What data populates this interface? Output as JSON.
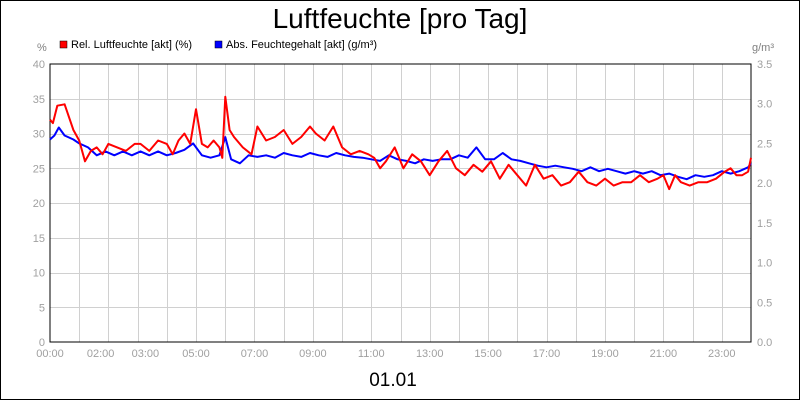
{
  "chart_data": {
    "type": "line",
    "title": "Luftfeuchte [pro Tag]",
    "date_label": "01.01",
    "y_left": {
      "unit": "%",
      "min": 0,
      "max": 40,
      "ticks": [
        "0",
        "5",
        "10",
        "15",
        "20",
        "25",
        "30",
        "35",
        "40"
      ]
    },
    "y_right": {
      "unit": "g/m³",
      "min": 0,
      "max": 3.5,
      "ticks": [
        "0.0",
        "0.5",
        "1.0",
        "1.5",
        "2.0",
        "2.5",
        "3.0",
        "3.5"
      ]
    },
    "x_axis": {
      "range_hours": [
        0,
        24
      ],
      "ticks": [
        {
          "label": "00:00",
          "hour": 0
        },
        {
          "label": "02:00",
          "hour": 2
        },
        {
          "label": "03:00",
          "hour": 3
        },
        {
          "label": "05:00",
          "hour": 5
        },
        {
          "label": "07:00",
          "hour": 7
        },
        {
          "label": "09:00",
          "hour": 9
        },
        {
          "label": "11:00",
          "hour": 11
        },
        {
          "label": "13:00",
          "hour": 13
        },
        {
          "label": "15:00",
          "hour": 15
        },
        {
          "label": "17:00",
          "hour": 17
        },
        {
          "label": "19:00",
          "hour": 19
        },
        {
          "label": "21:00",
          "hour": 21
        },
        {
          "label": "23:00",
          "hour": 23
        }
      ],
      "gridlines_hours": [
        1,
        2,
        3,
        4,
        5,
        6,
        7,
        8,
        9,
        10,
        11,
        12,
        13,
        14,
        15,
        16,
        17,
        18,
        19,
        20,
        21,
        22,
        23
      ]
    },
    "grid": true,
    "legend_position": "top-left",
    "series": [
      {
        "name": "Rel. Luftfeuchte [akt] (%)",
        "axis": "left",
        "color": "#ff0000",
        "x": [
          0,
          0.1,
          0.25,
          0.5,
          0.8,
          1.0,
          1.2,
          1.4,
          1.6,
          1.8,
          2.0,
          2.3,
          2.6,
          2.9,
          3.1,
          3.4,
          3.7,
          4.0,
          4.2,
          4.4,
          4.6,
          4.8,
          5.0,
          5.2,
          5.4,
          5.6,
          5.8,
          5.9,
          6.0,
          6.15,
          6.3,
          6.6,
          6.9,
          7.1,
          7.4,
          7.7,
          8.0,
          8.3,
          8.6,
          8.9,
          9.1,
          9.4,
          9.7,
          10.0,
          10.3,
          10.6,
          10.9,
          11.1,
          11.3,
          11.5,
          11.8,
          12.1,
          12.4,
          12.7,
          13.0,
          13.3,
          13.6,
          13.9,
          14.2,
          14.5,
          14.8,
          15.1,
          15.4,
          15.7,
          16.0,
          16.3,
          16.6,
          16.9,
          17.2,
          17.5,
          17.8,
          18.1,
          18.4,
          18.7,
          19.0,
          19.3,
          19.6,
          19.9,
          20.2,
          20.5,
          20.8,
          21.0,
          21.2,
          21.4,
          21.6,
          21.9,
          22.2,
          22.5,
          22.8,
          23.1,
          23.3,
          23.5,
          23.7,
          23.9,
          24.0
        ],
        "y": [
          32,
          31.5,
          34,
          34.2,
          30.5,
          29,
          26,
          27.5,
          28,
          27,
          28.5,
          28,
          27.5,
          28.5,
          28.5,
          27.5,
          29,
          28.5,
          27,
          29,
          30,
          28.5,
          33.5,
          28.5,
          28,
          29,
          28,
          26.5,
          35.3,
          30.5,
          29.5,
          28,
          27,
          31,
          29,
          29.5,
          30.5,
          28.5,
          29.5,
          31,
          30,
          29,
          31,
          28,
          27,
          27.5,
          27,
          26.5,
          25,
          26,
          28,
          25,
          27,
          26,
          24,
          26,
          27.5,
          25,
          24,
          25.5,
          24.5,
          26,
          23.5,
          25.5,
          24,
          22.5,
          25.5,
          23.5,
          24,
          22.5,
          23,
          24.5,
          23,
          22.5,
          23.5,
          22.5,
          23,
          23,
          24,
          23,
          23.5,
          24,
          22,
          24,
          23,
          22.5,
          23,
          23,
          23.5,
          24.5,
          25,
          24,
          24,
          24.5,
          26.5
        ]
      },
      {
        "name": "Abs. Feuchtegehalt [akt] (g/m³)",
        "axis": "right",
        "color": "#0000ff",
        "x": [
          0,
          0.15,
          0.3,
          0.5,
          0.8,
          1.0,
          1.3,
          1.6,
          1.9,
          2.2,
          2.5,
          2.8,
          3.1,
          3.4,
          3.7,
          4.0,
          4.3,
          4.6,
          4.9,
          5.2,
          5.5,
          5.8,
          6.0,
          6.2,
          6.5,
          6.8,
          7.1,
          7.4,
          7.7,
          8.0,
          8.3,
          8.6,
          8.9,
          9.2,
          9.5,
          9.8,
          10.1,
          10.4,
          10.7,
          11.0,
          11.3,
          11.6,
          11.9,
          12.2,
          12.5,
          12.8,
          13.1,
          13.4,
          13.7,
          14.0,
          14.3,
          14.6,
          14.9,
          15.2,
          15.5,
          15.8,
          16.1,
          16.4,
          16.7,
          17.0,
          17.3,
          17.6,
          17.9,
          18.2,
          18.5,
          18.8,
          19.1,
          19.4,
          19.7,
          20.0,
          20.3,
          20.6,
          20.9,
          21.2,
          21.5,
          21.8,
          22.1,
          22.4,
          22.7,
          23.0,
          23.3,
          23.6,
          23.9,
          24.0
        ],
        "y": [
          2.55,
          2.6,
          2.7,
          2.6,
          2.55,
          2.5,
          2.45,
          2.35,
          2.4,
          2.35,
          2.4,
          2.35,
          2.4,
          2.35,
          2.4,
          2.35,
          2.38,
          2.42,
          2.5,
          2.35,
          2.32,
          2.35,
          2.58,
          2.3,
          2.25,
          2.35,
          2.33,
          2.35,
          2.32,
          2.38,
          2.35,
          2.33,
          2.38,
          2.35,
          2.33,
          2.38,
          2.35,
          2.33,
          2.32,
          2.3,
          2.28,
          2.35,
          2.3,
          2.28,
          2.25,
          2.3,
          2.28,
          2.3,
          2.3,
          2.35,
          2.32,
          2.45,
          2.3,
          2.3,
          2.38,
          2.3,
          2.28,
          2.25,
          2.22,
          2.2,
          2.22,
          2.2,
          2.18,
          2.15,
          2.2,
          2.15,
          2.18,
          2.15,
          2.12,
          2.15,
          2.12,
          2.15,
          2.1,
          2.12,
          2.08,
          2.05,
          2.1,
          2.08,
          2.1,
          2.15,
          2.12,
          2.15,
          2.2,
          2.25
        ]
      }
    ]
  }
}
